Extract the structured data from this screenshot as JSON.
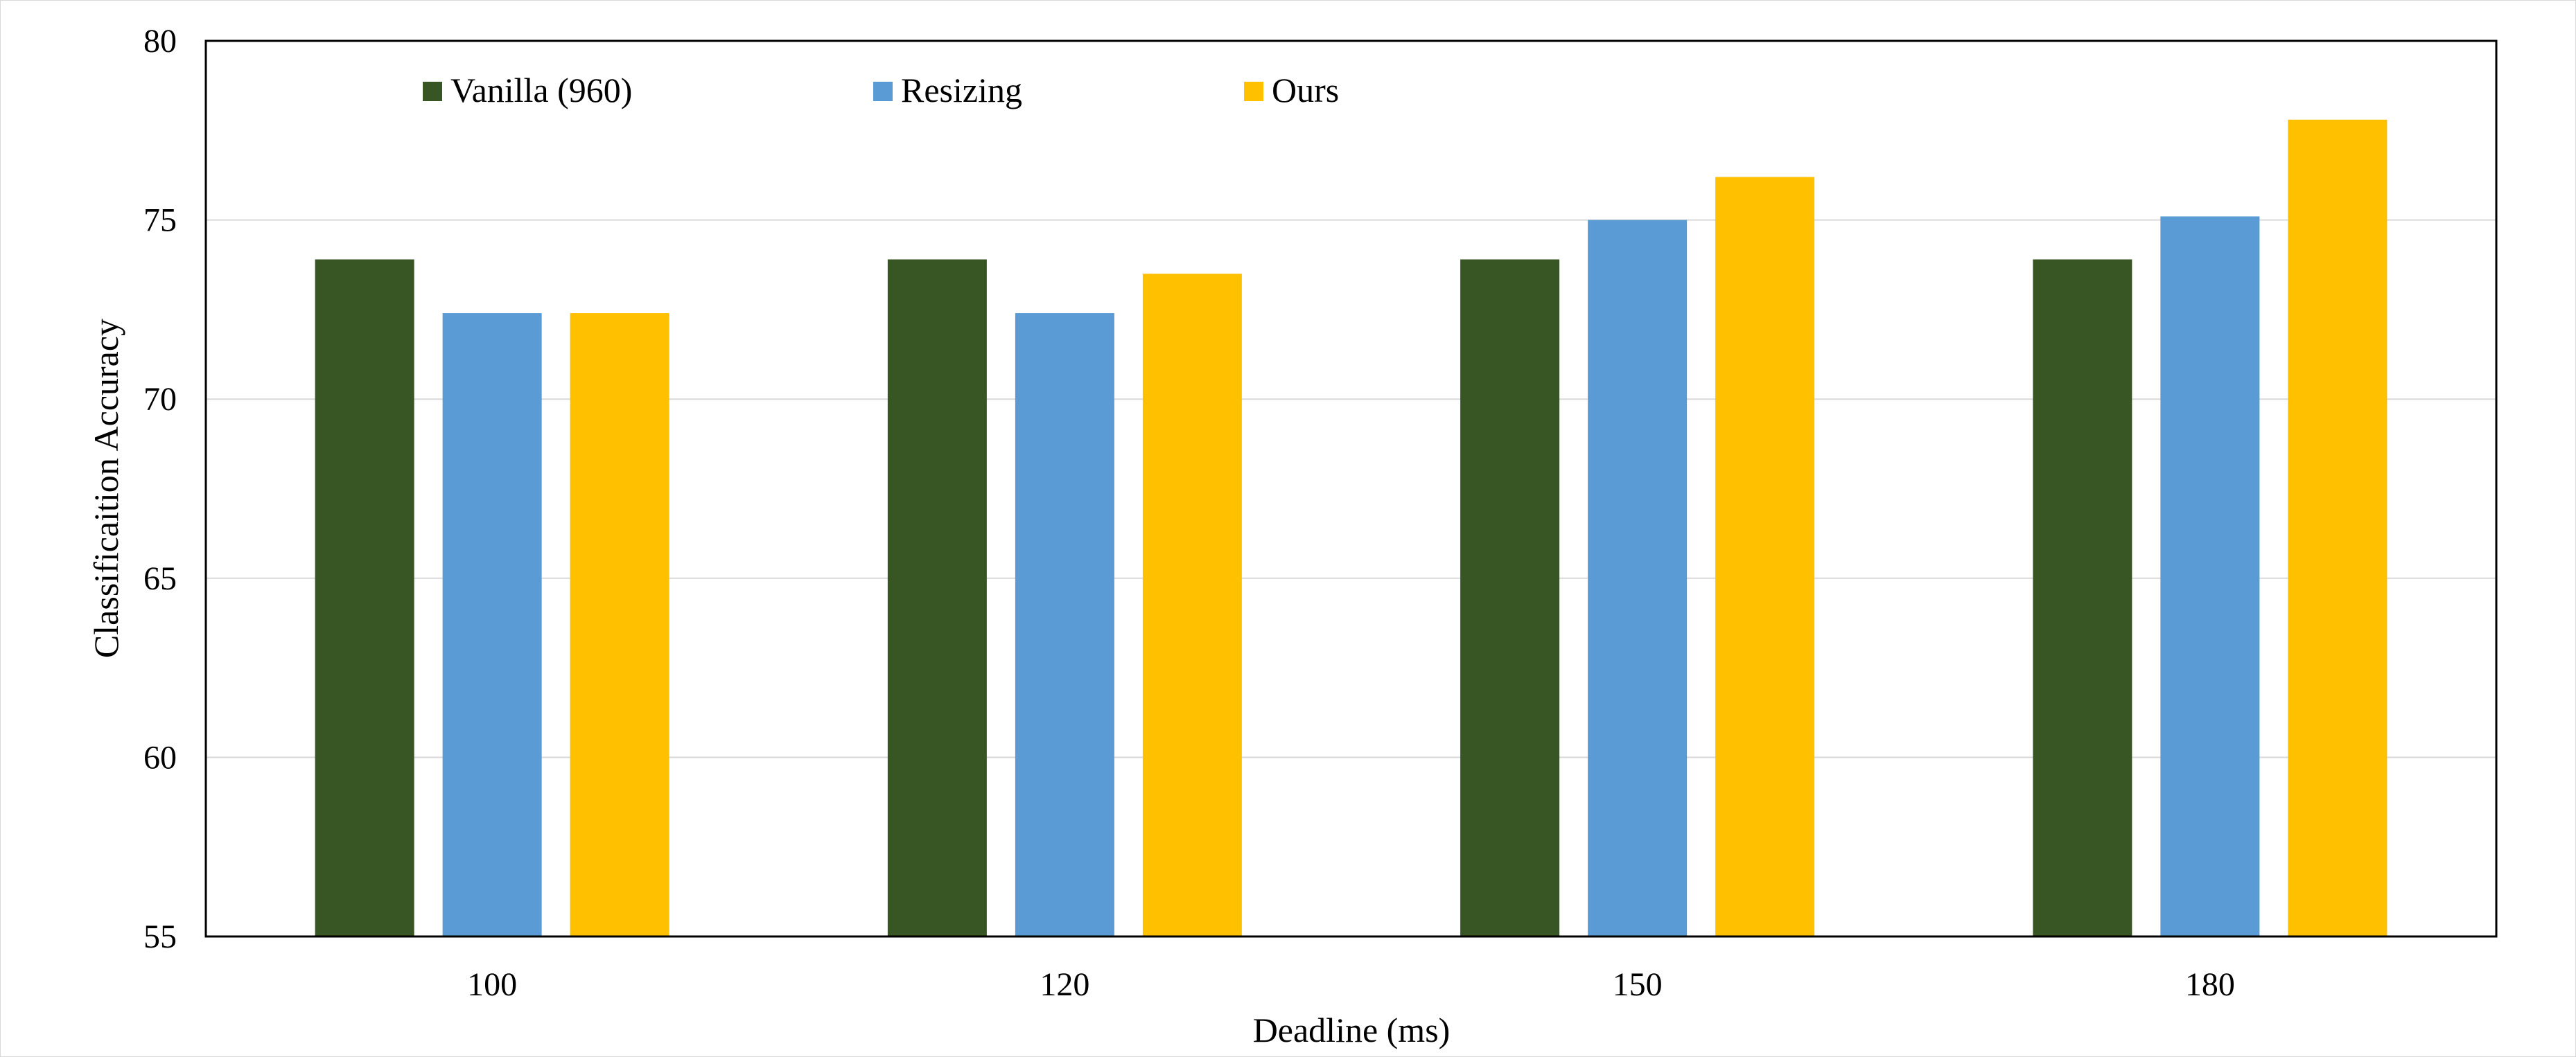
{
  "chart_data": {
    "type": "bar",
    "title": "",
    "xlabel": "Deadline (ms)",
    "ylabel": "Classificaition Accuracy",
    "categories": [
      "100",
      "120",
      "150",
      "180"
    ],
    "series": [
      {
        "name": "Vanilla (960)",
        "color": "#375623",
        "values": [
          73.9,
          73.9,
          73.9,
          73.9
        ]
      },
      {
        "name": "Resizing",
        "color": "#5b9bd5",
        "values": [
          72.4,
          72.4,
          75.0,
          75.1
        ]
      },
      {
        "name": "Ours",
        "color": "#ffc000",
        "values": [
          72.4,
          73.5,
          76.2,
          77.8
        ]
      }
    ],
    "ylim": [
      55,
      80
    ],
    "yticks": [
      "55",
      "60",
      "65",
      "70",
      "75",
      "80"
    ],
    "grid": true,
    "legend_position": "top"
  }
}
